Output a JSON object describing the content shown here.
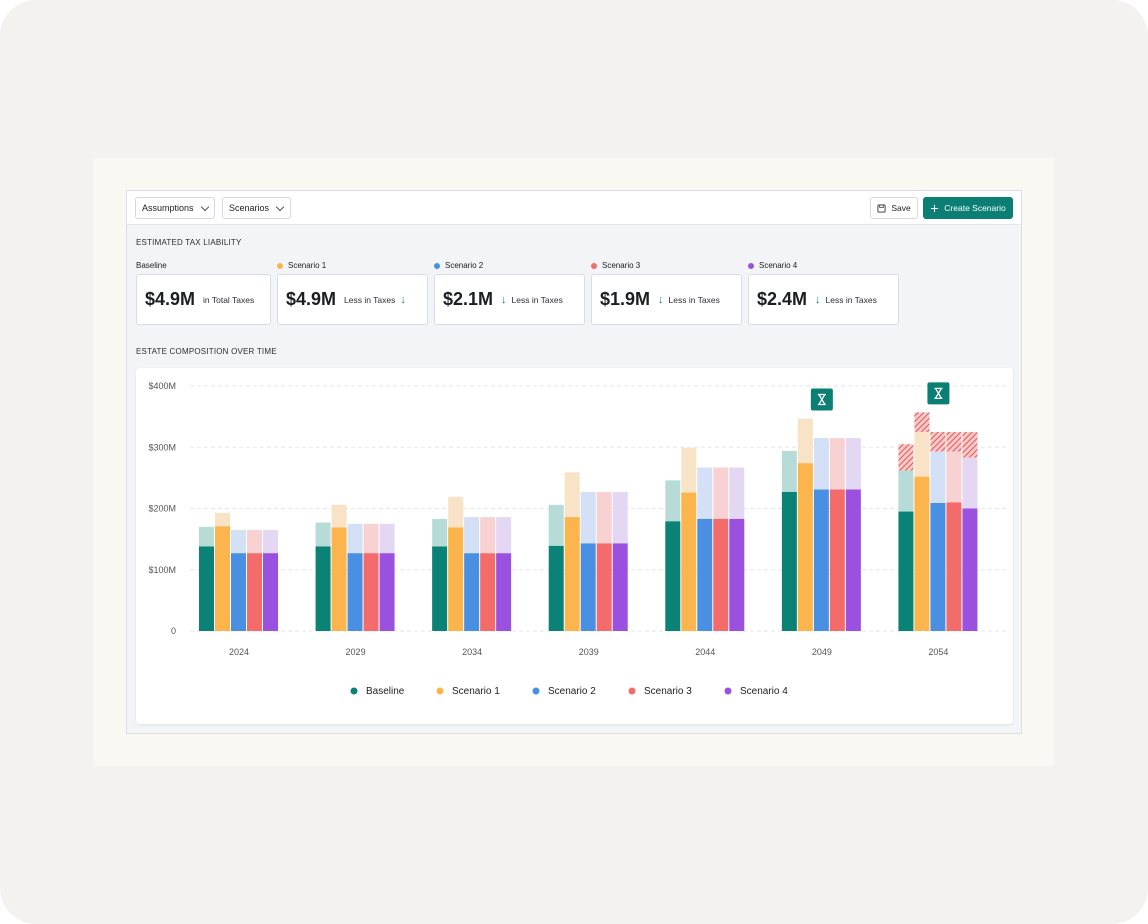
{
  "toolbar": {
    "assumptions_label": "Assumptions",
    "scenarios_label": "Scenarios",
    "save_label": "Save",
    "create_label": "Create Scenario",
    "save_icon": "save-icon",
    "create_icon": "plus-icon"
  },
  "tax": {
    "section_title": "ESTIMATED TAX LIABILITY",
    "cards": [
      {
        "label": "Baseline",
        "value": "$4.9M",
        "desc": "in Total Taxes",
        "color": ""
      },
      {
        "label": "Scenario 1",
        "value": "$4.9M",
        "desc": "Less in Taxes",
        "color": "#fbb54c"
      },
      {
        "label": "Scenario 2",
        "value": "$2.1M",
        "desc": "Less in Taxes",
        "color": "#4a90e2"
      },
      {
        "label": "Scenario 3",
        "value": "$1.9M",
        "desc": "Less in Taxes",
        "color": "#f46b6b"
      },
      {
        "label": "Scenario 4",
        "value": "$2.4M",
        "desc": "Less in Taxes",
        "color": "#9b51e0"
      }
    ]
  },
  "estate": {
    "section_title": "ESTATE COMPOSITION OVER TIME"
  },
  "chart_data": {
    "type": "bar",
    "stacked": true,
    "categories": [
      "2024",
      "2029",
      "2034",
      "2039",
      "2044",
      "2049",
      "2054"
    ],
    "yticks": [
      "0",
      "$100M",
      "$200M",
      "$300M",
      "$400M"
    ],
    "ylim": [
      0,
      400
    ],
    "grid": true,
    "legend_position": "bottom",
    "series": [
      {
        "name": "Baseline",
        "color": "#0b8276",
        "light": "#b7dcd8",
        "base": [
          138,
          138,
          138,
          139,
          179,
          227,
          195
        ],
        "top": [
          170,
          177,
          183,
          206,
          246,
          294,
          262
        ],
        "hatch": [
          0,
          0,
          0,
          0,
          0,
          0,
          305
        ]
      },
      {
        "name": "Scenario 1",
        "color": "#fbb54c",
        "light": "#f9e3c6",
        "base": [
          171,
          169,
          169,
          186,
          226,
          274,
          252
        ],
        "top": [
          193,
          206,
          219,
          259,
          299,
          347,
          325
        ],
        "hatch": [
          0,
          0,
          0,
          0,
          0,
          0,
          357
        ]
      },
      {
        "name": "Scenario 2",
        "color": "#4a90e2",
        "light": "#d3e0f5",
        "base": [
          127,
          127,
          127,
          143,
          183,
          231,
          209
        ],
        "top": [
          165,
          175,
          186,
          227,
          267,
          315,
          293
        ],
        "hatch": [
          0,
          0,
          0,
          0,
          0,
          0,
          325
        ]
      },
      {
        "name": "Scenario 3",
        "color": "#f46b6b",
        "light": "#f8d2d2",
        "base": [
          127,
          127,
          127,
          143,
          183,
          231,
          210
        ],
        "top": [
          165,
          175,
          186,
          227,
          267,
          315,
          293
        ],
        "hatch": [
          0,
          0,
          0,
          0,
          0,
          0,
          325
        ]
      },
      {
        "name": "Scenario 4",
        "color": "#9b51e0",
        "light": "#e4d7f4",
        "base": [
          127,
          127,
          127,
          143,
          183,
          231,
          200
        ],
        "top": [
          165,
          175,
          186,
          227,
          267,
          315,
          283
        ],
        "hatch": [
          0,
          0,
          0,
          0,
          0,
          0,
          325
        ]
      }
    ],
    "annotations": [
      {
        "category": "2049",
        "icon": "hourglass-icon"
      },
      {
        "category": "2054",
        "icon": "hourglass-icon"
      }
    ]
  }
}
